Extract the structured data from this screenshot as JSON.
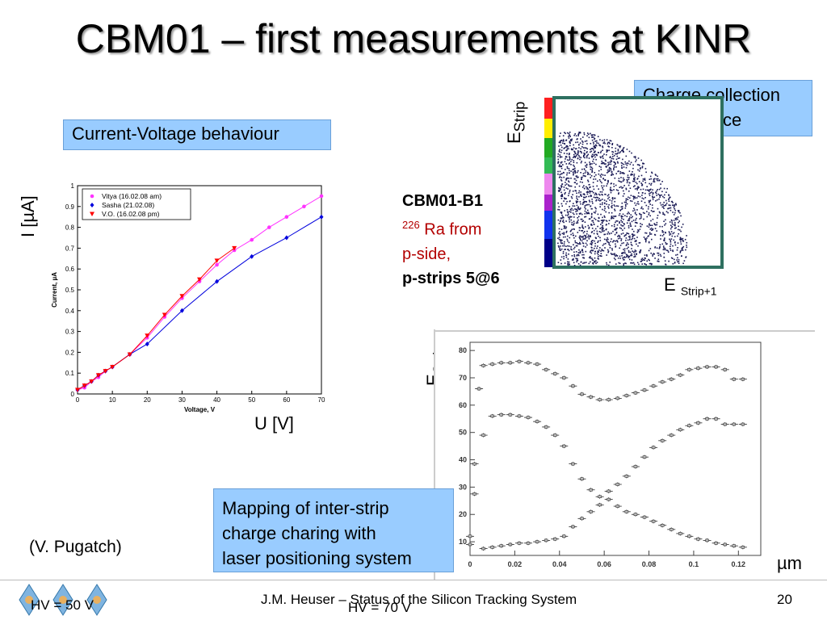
{
  "slide": {
    "title": "CBM01 – first measurements at  KINR",
    "iv_box": "Current-Voltage behaviour",
    "cc_box_line1": "Charge collection",
    "cc_box_line2": "near surface",
    "map_box_line1": "Mapping of inter-strip",
    "map_box_line2": "charge charing with",
    "map_box_line3": "laser positioning system",
    "iv_y_axis": "I [µA]",
    "iv_x_axis": "U [V]",
    "b1_name": "CBM01-B1",
    "b1_sup": "226",
    "b1_line2": " Ra from",
    "b1_line3": "p-side,",
    "b1_line4": "p-strips 5@6",
    "author": "(V. Pugatch)",
    "e_strip": "E",
    "e_strip_sub": "Strip",
    "e_strip1": "E",
    "e_strip1_sub": "Strip+1",
    "um_label": "µm",
    "footer": "J.M. Heuser – Status of the Silicon Tracking System",
    "page_number": "20",
    "hv70": "HV = 70 V",
    "hv50": "HV = 50 V",
    "colors": {
      "box": "#99ccff",
      "vitya": "#ff33ff",
      "sasha": "#0000dd",
      "vo": "#ff0000",
      "scatter": "#1a1a55",
      "frame": "#2e7060"
    }
  },
  "chart_data": [
    {
      "type": "line",
      "xlabel": "Voltage, V",
      "ylabel": "Current, µA",
      "xlim": [
        0,
        70
      ],
      "ylim": [
        0,
        1
      ],
      "x_ticks": [
        "0",
        "10",
        "20",
        "30",
        "40",
        "50",
        "60",
        "70"
      ],
      "y_ticks": [
        "0",
        "0.1",
        "0.2",
        "0.3",
        "0.4",
        "0.5",
        "0.6",
        "0.7",
        "0.8",
        "0.9",
        "1"
      ],
      "legend": "top-left",
      "series": [
        {
          "name": "Vitya (16.02.08 am)",
          "marker": "circle",
          "x": [
            0,
            2,
            4,
            6,
            8,
            10,
            15,
            20,
            25,
            30,
            35,
            40,
            45,
            50,
            55,
            60,
            65,
            70
          ],
          "y": [
            0.02,
            0.03,
            0.06,
            0.08,
            0.11,
            0.13,
            0.19,
            0.27,
            0.37,
            0.46,
            0.54,
            0.62,
            0.69,
            0.74,
            0.8,
            0.85,
            0.9,
            0.95
          ]
        },
        {
          "name": "Sasha (21.02.08)",
          "marker": "diamond",
          "x": [
            0,
            2,
            4,
            6,
            8,
            10,
            15,
            20,
            30,
            40,
            50,
            60,
            70
          ],
          "y": [
            0.02,
            0.04,
            0.06,
            0.09,
            0.11,
            0.13,
            0.19,
            0.24,
            0.4,
            0.54,
            0.66,
            0.75,
            0.85
          ]
        },
        {
          "name": "V.O. (16.02.08 pm)",
          "marker": "triangle-down",
          "x": [
            0,
            2,
            4,
            6,
            8,
            10,
            15,
            20,
            25,
            30,
            35,
            40,
            45
          ],
          "y": [
            0.02,
            0.04,
            0.06,
            0.09,
            0.11,
            0.13,
            0.19,
            0.28,
            0.38,
            0.47,
            0.55,
            0.64,
            0.7
          ]
        }
      ]
    },
    {
      "type": "scatter",
      "xlim": [
        0,
        0.13
      ],
      "ylim": [
        5,
        83
      ],
      "x_ticks": [
        "0",
        "0.02",
        "0.04",
        "0.06",
        "0.08",
        "0.1",
        "0.12"
      ],
      "y_ticks": [
        "10",
        "20",
        "30",
        "40",
        "50",
        "60",
        "70",
        "80"
      ],
      "series": [
        {
          "x": [
            0.004,
            0.006,
            0.01,
            0.014,
            0.018,
            0.022,
            0.026,
            0.03,
            0.034,
            0.038,
            0.042,
            0.046,
            0.05,
            0.054,
            0.058,
            0.062,
            0.066,
            0.07,
            0.074,
            0.078,
            0.082,
            0.086,
            0.09,
            0.094,
            0.098,
            0.102,
            0.106,
            0.11,
            0.114,
            0.118,
            0.122
          ],
          "y": [
            66,
            74.5,
            75,
            75.5,
            75.5,
            76,
            75.5,
            75,
            73,
            71.5,
            70,
            67,
            64,
            63,
            62,
            62,
            62.5,
            63.5,
            64.5,
            65.5,
            67,
            68.5,
            69.5,
            71,
            73,
            73.5,
            74,
            74,
            73,
            69.5,
            69.5
          ]
        },
        {
          "x": [
            0,
            0.002,
            0.006,
            0.01,
            0.014,
            0.018,
            0.022,
            0.026,
            0.03,
            0.034,
            0.038,
            0.042,
            0.046,
            0.05,
            0.054,
            0.058,
            0.062,
            0.066,
            0.07,
            0.074,
            0.078,
            0.082,
            0.086,
            0.09,
            0.094,
            0.098,
            0.102,
            0.106,
            0.11,
            0.114,
            0.118,
            0.122
          ],
          "y": [
            12,
            38.5,
            49,
            56,
            56.5,
            56.5,
            56,
            55.5,
            54,
            52,
            49,
            45,
            38.5,
            33,
            29,
            26.5,
            28.5,
            31,
            34,
            37.5,
            41,
            44.5,
            47,
            49,
            51,
            52.5,
            53.5,
            55,
            55,
            53,
            53,
            53
          ]
        },
        {
          "x": [
            0,
            0.002,
            0.006,
            0.01,
            0.014,
            0.018,
            0.022,
            0.026,
            0.03,
            0.034,
            0.038,
            0.042,
            0.046,
            0.05,
            0.054,
            0.058,
            0.062,
            0.066,
            0.07,
            0.074,
            0.078,
            0.082,
            0.086,
            0.09,
            0.094,
            0.098,
            0.102,
            0.106,
            0.11,
            0.114,
            0.118,
            0.122
          ],
          "y": [
            9,
            27.5,
            7.5,
            8,
            8.5,
            9,
            9.5,
            9.5,
            10,
            10.5,
            11,
            12,
            15.5,
            18.5,
            21,
            23.5,
            25.5,
            23,
            21,
            20,
            19,
            17.5,
            16,
            14.5,
            13,
            12,
            11,
            10.5,
            9.5,
            9,
            8.5,
            8
          ]
        }
      ]
    }
  ]
}
